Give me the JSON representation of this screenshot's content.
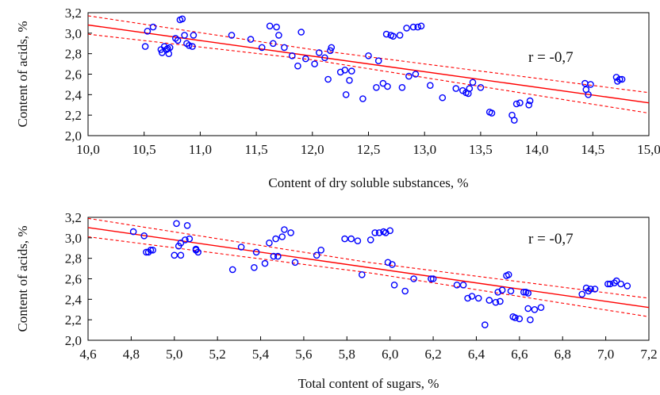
{
  "chart_data": [
    {
      "type": "scatter",
      "title": "",
      "xlabel": "Content of dry soluble substances, %",
      "ylabel": "Content of acids, %",
      "xlim": [
        10.0,
        15.0
      ],
      "ylim": [
        2.0,
        3.2
      ],
      "xticks": [
        "10,0",
        "10,5",
        "11,0",
        "11,5",
        "12,0",
        "12,5",
        "13,0",
        "13,5",
        "14,0",
        "14,5",
        "15,0"
      ],
      "yticks": [
        "2,0",
        "2,2",
        "2,4",
        "2,6",
        "2,8",
        "3,0",
        "3,2"
      ],
      "annotation": "r = -0,7",
      "grid": false,
      "colors": {
        "points": "#0000ff",
        "fit": "#ff0000"
      },
      "regression": {
        "x": [
          10.0,
          15.0
        ],
        "y": [
          3.08,
          2.32
        ]
      },
      "confidence_band": {
        "x": [
          10.0,
          12.0,
          15.0
        ],
        "upper": [
          3.17,
          2.84,
          2.42
        ],
        "lower": [
          2.99,
          2.74,
          2.22
        ]
      },
      "points": {
        "x": [
          10.51,
          10.53,
          10.58,
          10.65,
          10.66,
          10.68,
          10.7,
          10.71,
          10.72,
          10.73,
          10.78,
          10.8,
          10.82,
          10.84,
          10.86,
          10.88,
          10.9,
          10.93,
          10.94,
          11.28,
          11.45,
          11.55,
          11.62,
          11.65,
          11.68,
          11.7,
          11.75,
          11.82,
          11.87,
          11.9,
          11.94,
          12.02,
          12.06,
          12.11,
          12.14,
          12.16,
          12.17,
          12.25,
          12.29,
          12.3,
          12.33,
          12.35,
          12.45,
          12.5,
          12.57,
          12.59,
          12.63,
          12.66,
          12.67,
          12.7,
          12.72,
          12.78,
          12.8,
          12.84,
          12.86,
          12.9,
          12.92,
          12.94,
          12.97,
          13.05,
          13.16,
          13.28,
          13.34,
          13.37,
          13.39,
          13.4,
          13.43,
          13.5,
          13.58,
          13.6,
          13.78,
          13.8,
          13.82,
          13.85,
          13.93,
          13.94,
          14.43,
          14.44,
          14.46,
          14.48,
          14.71,
          14.72,
          14.74,
          14.76
        ],
        "y": [
          2.87,
          3.02,
          3.06,
          2.84,
          2.81,
          2.87,
          2.84,
          2.85,
          2.8,
          2.86,
          2.95,
          2.93,
          3.13,
          3.14,
          2.98,
          2.9,
          2.88,
          2.87,
          2.98,
          2.98,
          2.94,
          2.86,
          3.07,
          2.9,
          3.06,
          2.98,
          2.86,
          2.78,
          2.68,
          3.01,
          2.75,
          2.7,
          2.81,
          2.76,
          2.55,
          2.83,
          2.86,
          2.62,
          2.64,
          2.4,
          2.54,
          2.63,
          2.36,
          2.78,
          2.47,
          2.73,
          2.51,
          2.99,
          2.48,
          2.98,
          2.97,
          2.98,
          2.47,
          3.05,
          2.58,
          3.06,
          2.6,
          3.06,
          3.07,
          2.49,
          2.37,
          2.46,
          2.44,
          2.42,
          2.41,
          2.46,
          2.52,
          2.47,
          2.23,
          2.22,
          2.2,
          2.15,
          2.31,
          2.32,
          2.3,
          2.34,
          2.51,
          2.45,
          2.4,
          2.5,
          2.57,
          2.53,
          2.55,
          2.55
        ]
      }
    },
    {
      "type": "scatter",
      "title": "",
      "xlabel": "Total content of sugars, %",
      "ylabel": "Content of acids, %",
      "xlim": [
        4.6,
        7.2
      ],
      "ylim": [
        2.0,
        3.2
      ],
      "xticks": [
        "4,6",
        "4,8",
        "5,0",
        "5,2",
        "5,4",
        "5,6",
        "5,8",
        "6,0",
        "6,2",
        "6,4",
        "6,6",
        "6,8",
        "7,0",
        "7,2"
      ],
      "yticks": [
        "2,0",
        "2,2",
        "2,4",
        "2,6",
        "2,8",
        "3,0",
        "3,2"
      ],
      "annotation": "r = -0,7",
      "grid": false,
      "colors": {
        "points": "#0000ff",
        "fit": "#ff0000"
      },
      "regression": {
        "x": [
          4.6,
          7.2
        ],
        "y": [
          3.1,
          2.32
        ]
      },
      "confidence_band": {
        "x": [
          4.6,
          5.9,
          7.2
        ],
        "upper": [
          3.19,
          2.76,
          2.41
        ],
        "lower": [
          3.01,
          2.66,
          2.23
        ]
      },
      "points": {
        "x": [
          4.81,
          4.86,
          4.87,
          4.88,
          4.89,
          4.9,
          5.0,
          5.01,
          5.02,
          5.03,
          5.03,
          5.05,
          5.06,
          5.07,
          5.1,
          5.1,
          5.11,
          5.27,
          5.31,
          5.37,
          5.38,
          5.42,
          5.44,
          5.46,
          5.47,
          5.48,
          5.5,
          5.51,
          5.54,
          5.56,
          5.66,
          5.68,
          5.79,
          5.82,
          5.85,
          5.87,
          5.91,
          5.93,
          5.95,
          5.97,
          5.98,
          5.99,
          6.0,
          6.01,
          6.02,
          6.07,
          6.11,
          6.19,
          6.2,
          6.31,
          6.34,
          6.36,
          6.38,
          6.41,
          6.44,
          6.46,
          6.49,
          6.5,
          6.51,
          6.52,
          6.54,
          6.55,
          6.56,
          6.57,
          6.58,
          6.6,
          6.62,
          6.63,
          6.64,
          6.64,
          6.65,
          6.67,
          6.7,
          6.89,
          6.91,
          6.92,
          6.93,
          6.95,
          7.01,
          7.02,
          7.04,
          7.05,
          7.07,
          7.1
        ],
        "y": [
          3.06,
          3.02,
          2.86,
          2.86,
          2.88,
          2.88,
          2.83,
          3.14,
          2.92,
          2.95,
          2.83,
          2.98,
          3.12,
          2.99,
          2.88,
          2.89,
          2.86,
          2.69,
          2.91,
          2.71,
          2.86,
          2.75,
          2.95,
          2.82,
          2.99,
          2.82,
          3.01,
          3.08,
          3.05,
          2.76,
          2.83,
          2.88,
          2.99,
          2.99,
          2.97,
          2.64,
          2.98,
          3.05,
          3.05,
          3.06,
          3.05,
          2.76,
          3.07,
          2.74,
          2.54,
          2.48,
          2.6,
          2.6,
          2.6,
          2.54,
          2.54,
          2.41,
          2.43,
          2.41,
          2.15,
          2.39,
          2.37,
          2.47,
          2.38,
          2.49,
          2.63,
          2.64,
          2.48,
          2.23,
          2.22,
          2.21,
          2.47,
          2.47,
          2.31,
          2.46,
          2.2,
          2.3,
          2.32,
          2.45,
          2.51,
          2.48,
          2.5,
          2.5,
          2.55,
          2.55,
          2.56,
          2.58,
          2.55,
          2.53
        ]
      }
    }
  ]
}
